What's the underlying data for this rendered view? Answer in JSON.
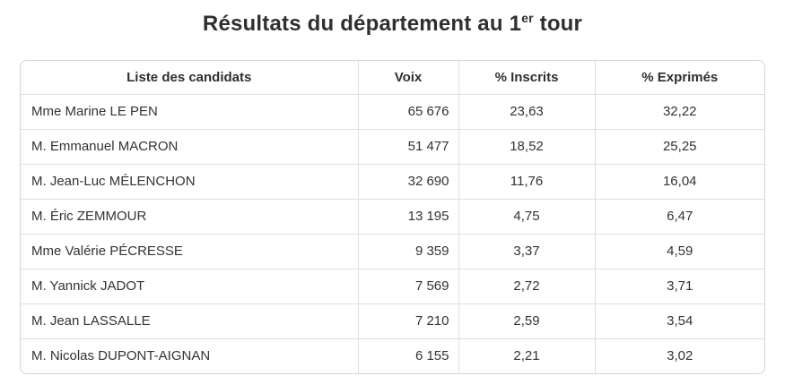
{
  "title": {
    "prefix": "Résultats du département au 1",
    "superscript": "er",
    "suffix": " tour"
  },
  "theme": {
    "text": "#333333",
    "border_outer": "#d4d4d4",
    "border_inner": "#dfdfdf",
    "background": "#ffffff"
  },
  "table": {
    "columns": [
      {
        "label": "Liste des candidats"
      },
      {
        "label": "Voix"
      },
      {
        "label": "% Inscrits"
      },
      {
        "label": "% Exprimés"
      }
    ],
    "rows": [
      {
        "candidate": "Mme Marine LE PEN",
        "voix": "65 676",
        "pct_inscrits": "23,63",
        "pct_exprimes": "32,22"
      },
      {
        "candidate": "M. Emmanuel MACRON",
        "voix": "51 477",
        "pct_inscrits": "18,52",
        "pct_exprimes": "25,25"
      },
      {
        "candidate": "M. Jean-Luc MÉLENCHON",
        "voix": "32 690",
        "pct_inscrits": "11,76",
        "pct_exprimes": "16,04"
      },
      {
        "candidate": "M. Éric ZEMMOUR",
        "voix": "13 195",
        "pct_inscrits": "4,75",
        "pct_exprimes": "6,47"
      },
      {
        "candidate": "Mme Valérie PÉCRESSE",
        "voix": "9 359",
        "pct_inscrits": "3,37",
        "pct_exprimes": "4,59"
      },
      {
        "candidate": "M. Yannick JADOT",
        "voix": "7 569",
        "pct_inscrits": "2,72",
        "pct_exprimes": "3,71"
      },
      {
        "candidate": "M. Jean LASSALLE",
        "voix": "7 210",
        "pct_inscrits": "2,59",
        "pct_exprimes": "3,54"
      },
      {
        "candidate": "M. Nicolas DUPONT-AIGNAN",
        "voix": "6 155",
        "pct_inscrits": "2,21",
        "pct_exprimes": "3,02"
      }
    ]
  },
  "chart_data": {
    "type": "table",
    "title": "Résultats du département au 1er tour",
    "columns": [
      "Liste des candidats",
      "Voix",
      "% Inscrits",
      "% Exprimés"
    ],
    "rows": [
      {
        "candidate": "Mme Marine LE PEN",
        "voix": 65676,
        "pct_inscrits": 23.63,
        "pct_exprimes": 32.22
      },
      {
        "candidate": "M. Emmanuel MACRON",
        "voix": 51477,
        "pct_inscrits": 18.52,
        "pct_exprimes": 25.25
      },
      {
        "candidate": "M. Jean-Luc MÉLENCHON",
        "voix": 32690,
        "pct_inscrits": 11.76,
        "pct_exprimes": 16.04
      },
      {
        "candidate": "M. Éric ZEMMOUR",
        "voix": 13195,
        "pct_inscrits": 4.75,
        "pct_exprimes": 6.47
      },
      {
        "candidate": "Mme Valérie PÉCRESSE",
        "voix": 9359,
        "pct_inscrits": 3.37,
        "pct_exprimes": 4.59
      },
      {
        "candidate": "M. Yannick JADOT",
        "voix": 7569,
        "pct_inscrits": 2.72,
        "pct_exprimes": 3.71
      },
      {
        "candidate": "M. Jean LASSALLE",
        "voix": 7210,
        "pct_inscrits": 2.59,
        "pct_exprimes": 3.54
      },
      {
        "candidate": "M. Nicolas DUPONT-AIGNAN",
        "voix": 6155,
        "pct_inscrits": 2.21,
        "pct_exprimes": 3.02
      }
    ]
  }
}
